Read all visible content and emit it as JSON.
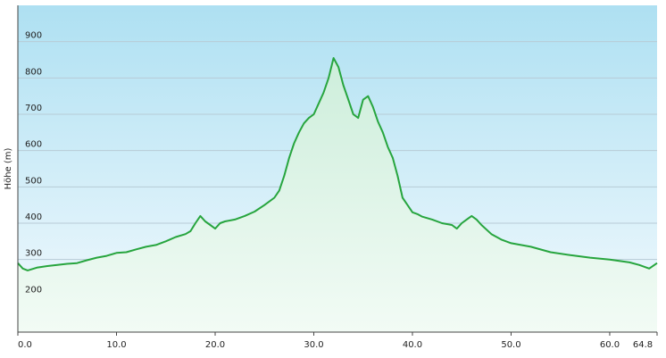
{
  "chart_data": {
    "type": "area",
    "title": "",
    "xlabel": "",
    "ylabel": "Höhe (m)",
    "xlim": [
      0,
      64.8
    ],
    "ylim": [
      100,
      1000
    ],
    "x_ticks": [
      0,
      10,
      20,
      30,
      40,
      50,
      60,
      64.8
    ],
    "x_tick_labels": [
      "0.0",
      "10.0",
      "20.0",
      "30.0",
      "40.0",
      "50.0",
      "60.0",
      "64.8"
    ],
    "y_ticks": [
      200,
      300,
      400,
      500,
      600,
      700,
      800,
      900
    ],
    "y_tick_labels": [
      "200",
      "300",
      "400",
      "500",
      "600",
      "700",
      "800",
      "900"
    ],
    "grid": true,
    "legend": "none",
    "colors": {
      "line": "#27a53e",
      "fill_top": "#cdeedb",
      "fill_bottom": "#f2fbf5",
      "bg_top": "#aee0f2",
      "bg_bottom": "#f3fafe",
      "grid": "#b7cbd6",
      "axis": "#444444"
    },
    "series": [
      {
        "x": [
          0,
          0.5,
          1,
          2,
          3,
          4,
          5,
          6,
          7,
          8,
          9,
          10,
          11,
          12,
          13,
          14,
          15,
          16,
          17,
          17.5,
          18,
          18.5,
          19,
          19.5,
          20,
          20.5,
          21,
          22,
          23,
          24,
          25,
          26,
          26.5,
          27,
          27.5,
          28,
          28.5,
          29,
          29.5,
          30,
          30.5,
          31,
          31.5,
          32,
          32.5,
          33,
          33.5,
          34,
          34.5,
          35,
          35.5,
          36,
          36.5,
          37,
          37.5,
          38,
          38.5,
          39,
          39.5,
          40,
          40.5,
          41,
          42,
          43,
          44,
          44.5,
          45,
          45.5,
          46,
          46.5,
          47,
          48,
          49,
          50,
          52,
          54,
          56,
          58,
          60,
          62,
          63,
          64,
          64.8
        ],
        "y": [
          290,
          275,
          270,
          278,
          282,
          285,
          288,
          290,
          298,
          305,
          310,
          318,
          320,
          328,
          335,
          340,
          350,
          362,
          370,
          378,
          400,
          420,
          405,
          395,
          385,
          400,
          405,
          410,
          420,
          432,
          450,
          470,
          490,
          530,
          580,
          620,
          650,
          675,
          690,
          700,
          730,
          760,
          800,
          855,
          830,
          780,
          740,
          700,
          690,
          740,
          750,
          720,
          680,
          650,
          610,
          580,
          530,
          470,
          450,
          430,
          425,
          418,
          410,
          400,
          395,
          385,
          400,
          410,
          420,
          410,
          395,
          370,
          355,
          345,
          335,
          320,
          312,
          305,
          300,
          292,
          285,
          275,
          290
        ]
      }
    ]
  }
}
